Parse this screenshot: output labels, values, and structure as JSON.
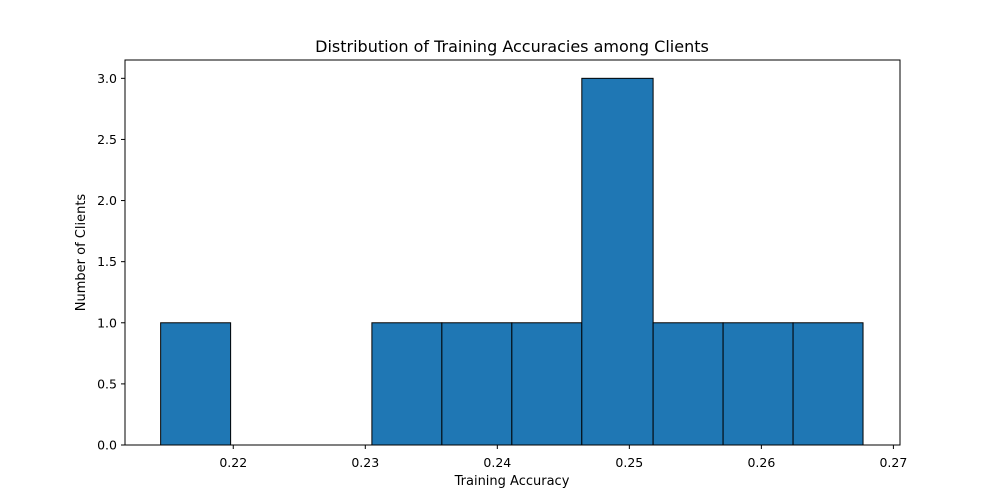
{
  "chart_data": {
    "type": "bar",
    "title": "Distribution of Training Accuracies among Clients",
    "xlabel": "Training Accuracy",
    "ylabel": "Number of Clients",
    "xlim": [
      0.2118,
      0.2705
    ],
    "ylim": [
      0,
      3.15
    ],
    "xticks": [
      0.22,
      0.23,
      0.24,
      0.25,
      0.26,
      0.27
    ],
    "xtick_labels": [
      "0.22",
      "0.23",
      "0.24",
      "0.25",
      "0.26",
      "0.27"
    ],
    "yticks": [
      0.0,
      0.5,
      1.0,
      1.5,
      2.0,
      2.5,
      3.0
    ],
    "ytick_labels": [
      "0.0",
      "0.5",
      "1.0",
      "1.5",
      "2.0",
      "2.5",
      "3.0"
    ],
    "bins": [
      0.2145,
      0.2198,
      0.2251,
      0.2305,
      0.2358,
      0.2411,
      0.2464,
      0.2518,
      0.2571,
      0.2624,
      0.2677
    ],
    "counts": [
      1,
      0,
      0,
      1,
      1,
      1,
      3,
      1,
      1,
      1
    ],
    "bar_color": "#1f77b4",
    "edge_color": "#000000",
    "grid": false,
    "legend": "none"
  }
}
